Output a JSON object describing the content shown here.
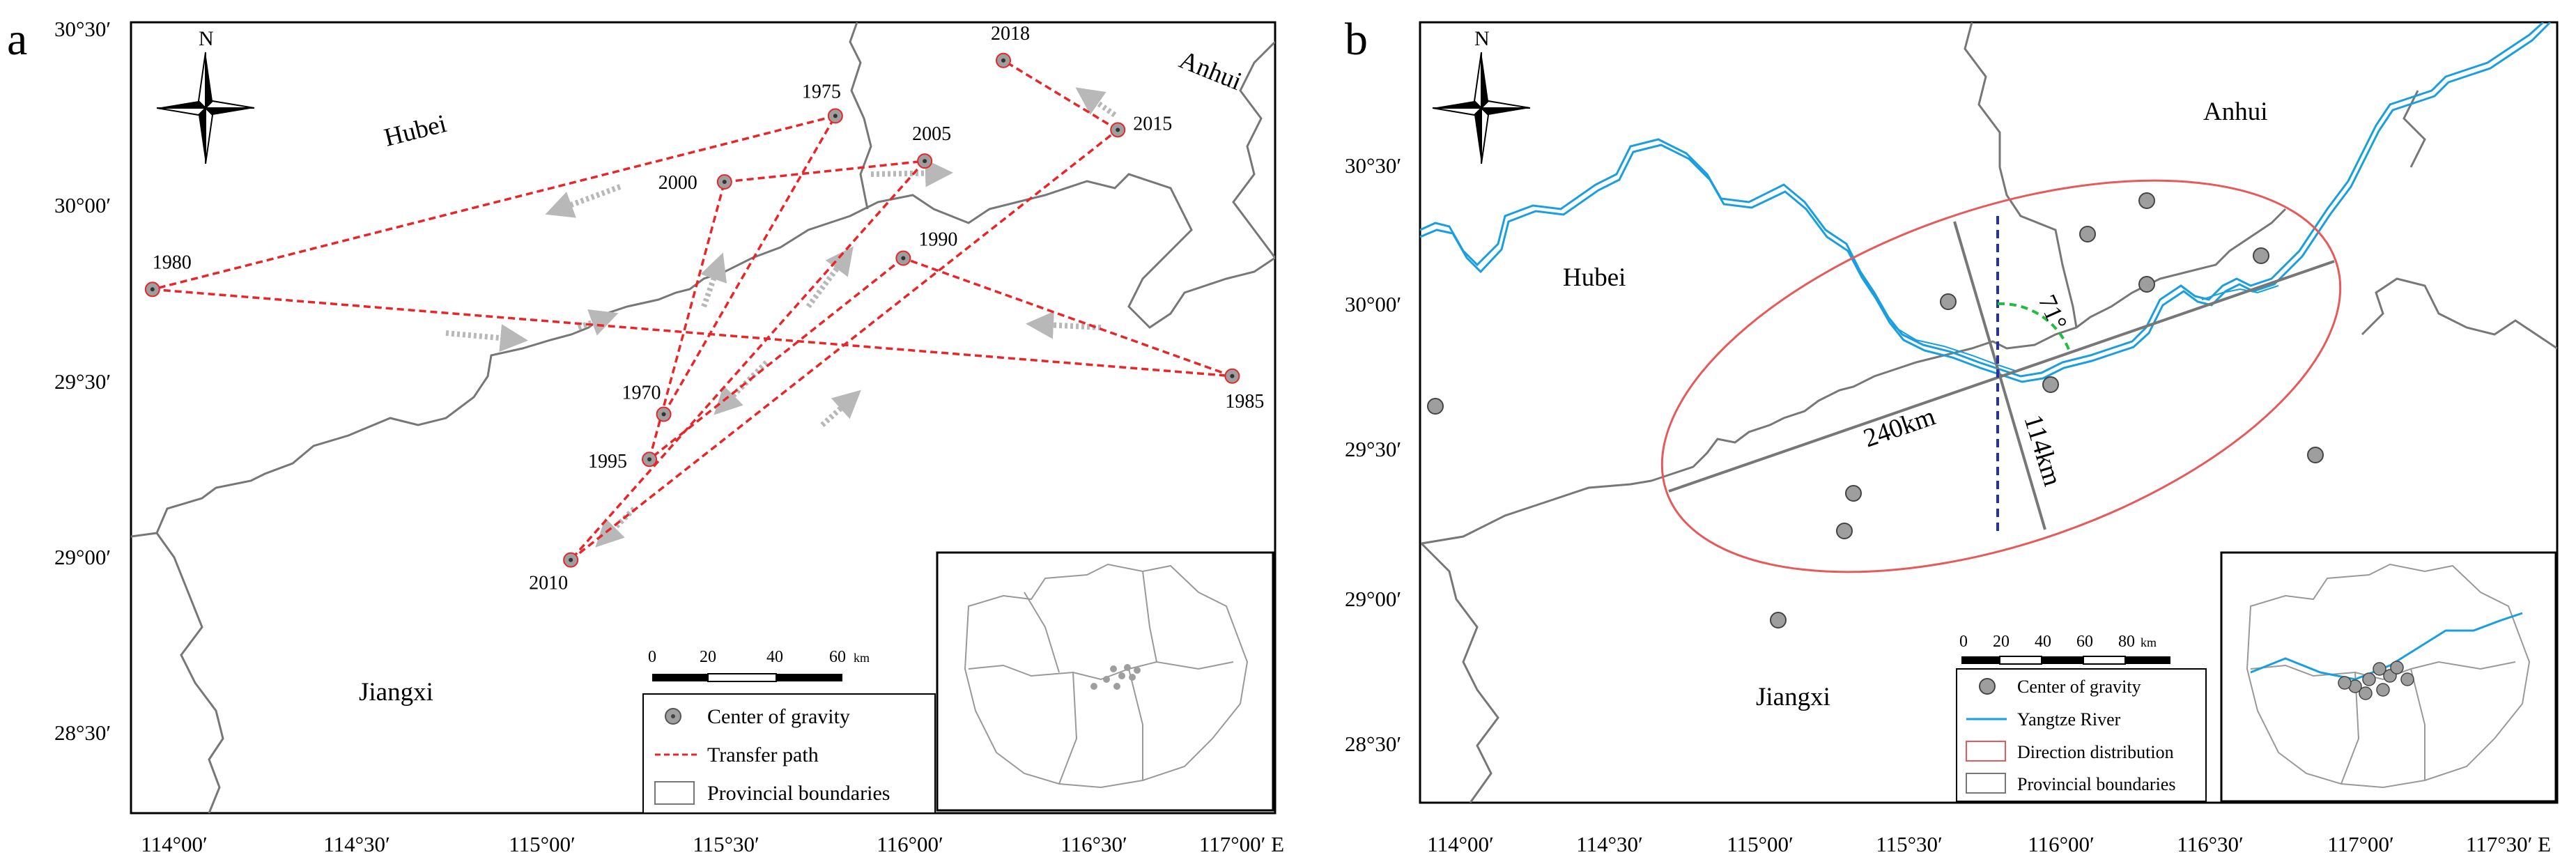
{
  "panel_a": {
    "letter": "a",
    "north": "N",
    "y_ticks": [
      "30°30′",
      "30°00′",
      "29°30′",
      "29°00′",
      "28°30′"
    ],
    "x_ticks": [
      "114°00′",
      "114°30′",
      "115°00′",
      "115°30′",
      "116°00′",
      "116°30′",
      "117°00′ E"
    ],
    "labels": {
      "hubei": "Hubei",
      "anhui": "Anhui",
      "jiangxi": "Jiangxi"
    },
    "points": [
      {
        "year": "1970",
        "lon": 115.37,
        "lat": 29.37
      },
      {
        "year": "1975",
        "lon": 115.85,
        "lat": 30.23
      },
      {
        "year": "1980",
        "lon": 113.94,
        "lat": 29.73
      },
      {
        "year": "1985",
        "lon": 116.96,
        "lat": 29.48
      },
      {
        "year": "1990",
        "lon": 116.04,
        "lat": 29.82
      },
      {
        "year": "1995",
        "lon": 115.33,
        "lat": 29.24
      },
      {
        "year": "2000",
        "lon": 115.54,
        "lat": 30.04
      },
      {
        "year": "2005",
        "lon": 116.1,
        "lat": 30.1
      },
      {
        "year": "2010",
        "lon": 115.11,
        "lat": 28.95
      },
      {
        "year": "2015",
        "lon": 116.64,
        "lat": 30.19
      },
      {
        "year": "2018",
        "lon": 116.32,
        "lat": 30.39
      }
    ],
    "path_order": [
      "1970",
      "1975",
      "1980",
      "1985",
      "1990",
      "1995",
      "2000",
      "2005",
      "2010",
      "2015",
      "2018"
    ],
    "scale": {
      "ticks": [
        "0",
        "20",
        "40",
        "60"
      ],
      "unit": "km"
    },
    "legend": {
      "center": "Center of gravity",
      "path": "Transfer path",
      "boundary": "Provincial boundaries"
    },
    "colors": {
      "path": "#e8262a",
      "point": "#9e9e9e",
      "border": "#777777",
      "arrow": "#b8b8b8"
    }
  },
  "panel_b": {
    "letter": "b",
    "north": "N",
    "y_ticks": [
      "30°30′",
      "30°00′",
      "29°30′",
      "29°00′",
      "28°30′"
    ],
    "x_ticks": [
      "114°00′",
      "114°30′",
      "115°00′",
      "115°30′",
      "116°00′",
      "116°30′",
      "117°00′",
      "117°30′ E"
    ],
    "labels": {
      "hubei": "Hubei",
      "anhui": "Anhui",
      "jiangxi": "Jiangxi"
    },
    "ellipse": {
      "major": "240km",
      "minor": "114km",
      "angle": "71°"
    },
    "scale": {
      "ticks": [
        "0",
        "20",
        "40",
        "60",
        "80"
      ],
      "unit": "km"
    },
    "legend": {
      "center": "Center of gravity",
      "river": "Yangtze River",
      "ellipse": "Direction distribution",
      "boundary": "Provincial boundaries"
    },
    "colors": {
      "river": "#1a9fde",
      "ellipse": "#e55a5a",
      "axis_v": "#2233aa",
      "arc": "#22bb44",
      "border": "#777777",
      "point": "#9e9e9e"
    }
  }
}
